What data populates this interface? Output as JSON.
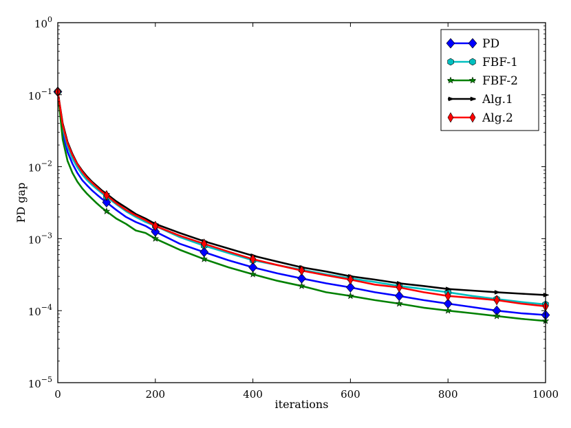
{
  "chart_data": {
    "type": "line",
    "title": "",
    "xlabel": "iterations",
    "ylabel": "PD gap",
    "xlim": [
      0,
      1000
    ],
    "ylim": [
      1e-05,
      1
    ],
    "yscale": "log",
    "grid": false,
    "legend_position": "top-right",
    "x_ticks": [
      0,
      200,
      400,
      600,
      800,
      1000
    ],
    "y_ticks": [
      {
        "value": 1e-05,
        "base": "10",
        "exp": "−5"
      },
      {
        "value": 0.0001,
        "base": "10",
        "exp": "−4"
      },
      {
        "value": 0.001,
        "base": "10",
        "exp": "−3"
      },
      {
        "value": 0.01,
        "base": "10",
        "exp": "−2"
      },
      {
        "value": 0.1,
        "base": "10",
        "exp": "−1"
      },
      {
        "value": 1,
        "base": "10",
        "exp": "0"
      }
    ],
    "x": [
      0,
      10,
      20,
      30,
      40,
      50,
      60,
      70,
      80,
      90,
      100,
      120,
      140,
      160,
      180,
      200,
      250,
      300,
      350,
      400,
      450,
      500,
      550,
      600,
      650,
      700,
      750,
      800,
      850,
      900,
      950,
      1000
    ],
    "series": [
      {
        "name": "PD",
        "color": "#0000ff",
        "marker": "diamond",
        "values": [
          0.11,
          0.03,
          0.016,
          0.011,
          0.0082,
          0.0065,
          0.0055,
          0.0047,
          0.0041,
          0.0036,
          0.0032,
          0.0025,
          0.002,
          0.0017,
          0.0015,
          0.00125,
          0.00085,
          0.00065,
          0.0005,
          0.0004,
          0.00033,
          0.00028,
          0.00024,
          0.00021,
          0.00018,
          0.00016,
          0.00014,
          0.000125,
          0.000112,
          0.0001,
          9.2e-05,
          8.7e-05
        ]
      },
      {
        "name": "FBF-1",
        "color": "#00bfbf",
        "marker": "hexagon",
        "values": [
          0.11,
          0.035,
          0.019,
          0.013,
          0.0098,
          0.0078,
          0.0065,
          0.0056,
          0.0049,
          0.0043,
          0.0038,
          0.003,
          0.0024,
          0.002,
          0.0017,
          0.0015,
          0.00105,
          0.0008,
          0.00063,
          0.0005,
          0.00043,
          0.00037,
          0.00032,
          0.00028,
          0.00025,
          0.00022,
          0.0002,
          0.00018,
          0.00016,
          0.000145,
          0.000132,
          0.000122
        ]
      },
      {
        "name": "FBF-2",
        "color": "#008000",
        "marker": "star",
        "values": [
          0.11,
          0.024,
          0.012,
          0.0082,
          0.0062,
          0.005,
          0.0042,
          0.0036,
          0.0031,
          0.0027,
          0.0024,
          0.0019,
          0.0016,
          0.0013,
          0.0012,
          0.001,
          0.0007,
          0.00052,
          0.0004,
          0.00032,
          0.00026,
          0.00022,
          0.00018,
          0.00016,
          0.00014,
          0.000125,
          0.00011,
          0.0001,
          9.2e-05,
          8.4e-05,
          7.7e-05,
          7.2e-05
        ]
      },
      {
        "name": "Alg.1",
        "color": "#000000",
        "marker": "arrow",
        "values": [
          0.11,
          0.04,
          0.022,
          0.015,
          0.011,
          0.0088,
          0.0073,
          0.0062,
          0.0054,
          0.0047,
          0.0042,
          0.0033,
          0.0027,
          0.0022,
          0.0019,
          0.0016,
          0.0012,
          0.00092,
          0.00073,
          0.00058,
          0.00048,
          0.0004,
          0.00035,
          0.0003,
          0.00027,
          0.00024,
          0.00022,
          0.0002,
          0.00019,
          0.00018,
          0.000172,
          0.000165
        ]
      },
      {
        "name": "Alg.2",
        "color": "#ff0000",
        "marker": "thin-diamond",
        "values": [
          0.11,
          0.038,
          0.021,
          0.0145,
          0.0108,
          0.0085,
          0.007,
          0.006,
          0.0052,
          0.0045,
          0.004,
          0.0031,
          0.0025,
          0.0021,
          0.0018,
          0.0015,
          0.0011,
          0.00085,
          0.00066,
          0.00052,
          0.00043,
          0.00036,
          0.00031,
          0.00027,
          0.00023,
          0.00021,
          0.00018,
          0.00016,
          0.00015,
          0.00014,
          0.000125,
          0.000115
        ]
      }
    ]
  }
}
